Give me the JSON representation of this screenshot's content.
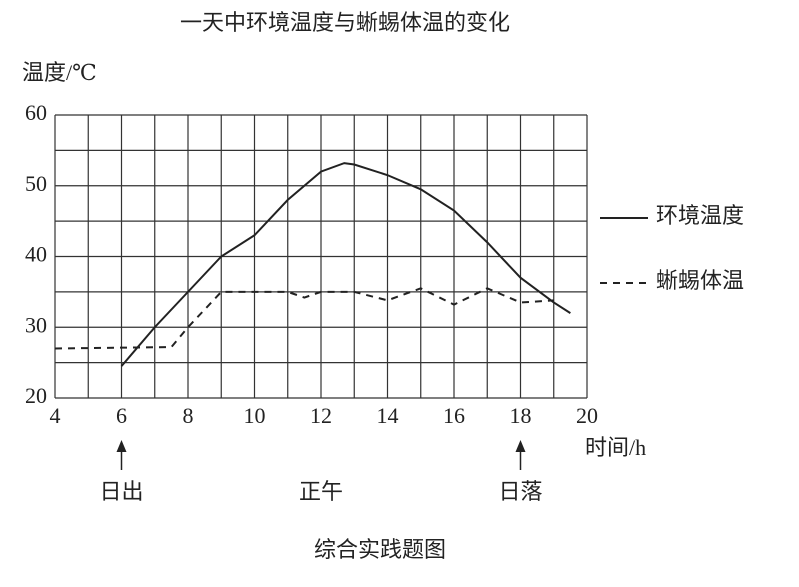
{
  "chart_data": {
    "type": "line",
    "title": "一天中环境温度与蜥蜴体温的变化",
    "y_label": "温度/℃",
    "x_label": "时间/h",
    "caption": "综合实践题图",
    "xlim": [
      4,
      20
    ],
    "xticks": [
      4,
      6,
      8,
      10,
      12,
      14,
      16,
      18,
      20
    ],
    "xgrid": [
      4,
      5,
      6,
      7,
      8,
      9,
      10,
      11,
      12,
      13,
      14,
      15,
      16,
      17,
      18,
      19,
      20
    ],
    "ylim": [
      20,
      60
    ],
    "yticks": [
      20,
      30,
      40,
      50,
      60
    ],
    "ygrid": [
      20,
      25,
      30,
      35,
      40,
      45,
      50,
      55,
      60
    ],
    "grid": true,
    "legend": "right",
    "annotations": [
      {
        "text": "日出",
        "x": 6,
        "arrow": true
      },
      {
        "text": "正午",
        "x": 12,
        "arrow": false
      },
      {
        "text": "日落",
        "x": 18,
        "arrow": true
      }
    ],
    "series": [
      {
        "name": "环境温度",
        "color": "#222222",
        "dashed": false,
        "x": [
          6,
          7,
          8,
          9,
          10,
          11,
          12,
          12.7,
          13,
          14,
          15,
          16,
          17,
          18,
          19,
          19.5
        ],
        "values": [
          24.5,
          30,
          35,
          40,
          43,
          48,
          52,
          53.2,
          53,
          51.5,
          49.5,
          46.5,
          42,
          37,
          33.5,
          32
        ]
      },
      {
        "name": "蜥蜴体温",
        "color": "#222222",
        "dashed": true,
        "x": [
          4,
          7.5,
          8,
          9,
          10,
          11,
          11.5,
          12,
          13,
          14,
          15,
          16,
          17,
          18,
          19
        ],
        "values": [
          27,
          27.2,
          30,
          35,
          35,
          35,
          34.2,
          35,
          35,
          33.8,
          35.5,
          33.2,
          35.5,
          33.5,
          33.8
        ]
      }
    ]
  }
}
